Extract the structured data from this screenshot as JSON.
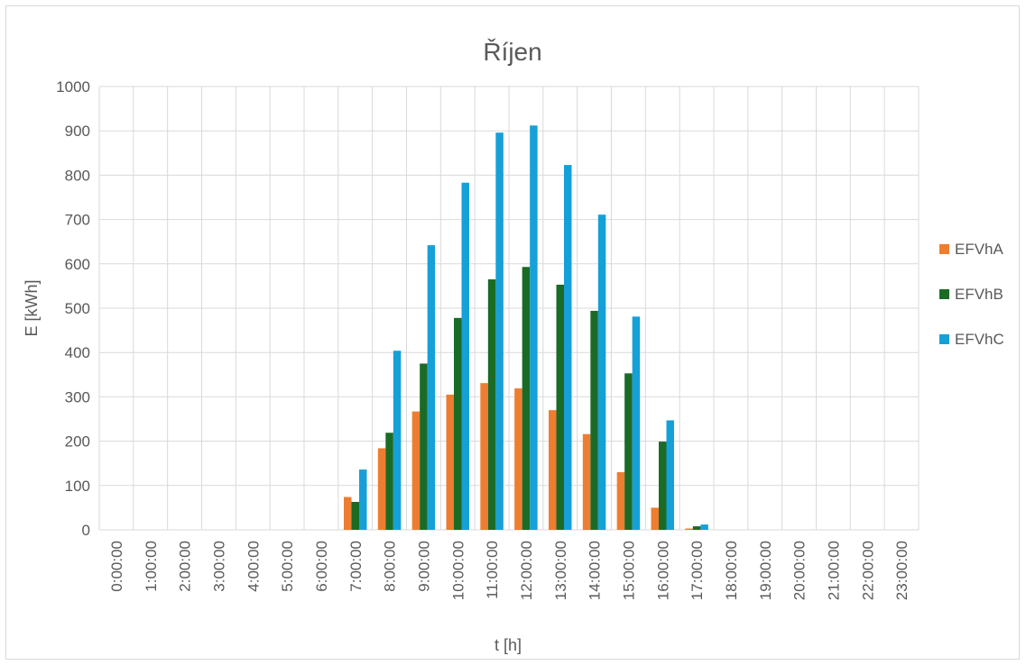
{
  "chart_data": {
    "type": "bar",
    "title": "Říjen",
    "xlabel": "t [h]",
    "ylabel": "E [kWh]",
    "ylim": [
      0,
      1000
    ],
    "yticks": [
      0,
      100,
      200,
      300,
      400,
      500,
      600,
      700,
      800,
      900,
      1000
    ],
    "grid": true,
    "legend_position": "right",
    "categories": [
      "0:00:00",
      "1:00:00",
      "2:00:00",
      "3:00:00",
      "4:00:00",
      "5:00:00",
      "6:00:00",
      "7:00:00",
      "8:00:00",
      "9:00:00",
      "10:00:00",
      "11:00:00",
      "12:00:00",
      "13:00:00",
      "14:00:00",
      "15:00:00",
      "16:00:00",
      "17:00:00",
      "18:00:00",
      "19:00:00",
      "20:00:00",
      "21:00:00",
      "22:00:00",
      "23:00:00"
    ],
    "series": [
      {
        "name": "EFVhA",
        "color": "#ed7d31",
        "values": [
          0,
          0,
          0,
          0,
          0,
          0,
          0,
          74,
          184,
          267,
          305,
          331,
          319,
          270,
          216,
          130,
          50,
          3,
          0,
          0,
          0,
          0,
          0,
          0
        ]
      },
      {
        "name": "EFVhB",
        "color": "#1a6b26",
        "values": [
          0,
          0,
          0,
          0,
          0,
          0,
          0,
          63,
          219,
          375,
          478,
          565,
          593,
          553,
          494,
          353,
          199,
          8,
          0,
          0,
          0,
          0,
          0,
          0
        ]
      },
      {
        "name": "EFVhC",
        "color": "#16a0d8",
        "values": [
          0,
          0,
          0,
          0,
          0,
          0,
          0,
          136,
          404,
          642,
          783,
          896,
          912,
          823,
          711,
          481,
          247,
          12,
          0,
          0,
          0,
          0,
          0,
          0
        ]
      }
    ]
  }
}
